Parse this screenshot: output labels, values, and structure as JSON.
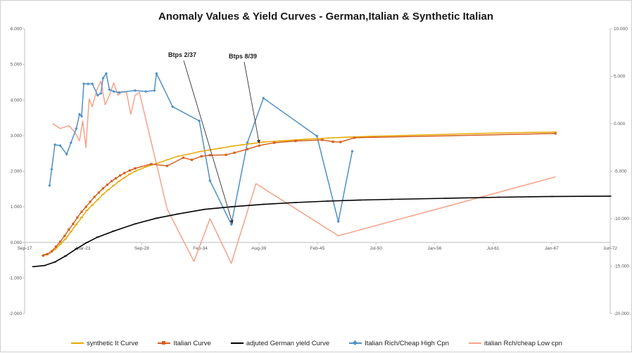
{
  "chart_data": {
    "type": "line",
    "title": "Anomaly Values & Yield Curves - German,Italian & Synthetic Italian",
    "xlabel": "",
    "ylabel": "",
    "x_ticks": [
      "Sep-17",
      "Mar-23",
      "Sep-28",
      "Feb-34",
      "Aug-39",
      "Feb-45",
      "Jul-50",
      "Jan-56",
      "Jul-61",
      "Jan-67",
      "Jun-72"
    ],
    "xlim": [
      2017.67,
      2072.42
    ],
    "y_left_ticks": [
      "-2.000",
      "-1.000",
      "0.000",
      "1.000",
      "2.000",
      "3.000",
      "4.000",
      "5.000",
      "6.000"
    ],
    "ylim_left": [
      -2,
      6
    ],
    "y_right_ticks": [
      "10.000",
      "5.000",
      "0.000",
      "-5.000",
      "-10.000",
      "-15.000",
      "-20.000"
    ],
    "ylim_right": [
      -20,
      10
    ],
    "grid": false,
    "legend_position": "bottom",
    "annotations": [
      {
        "text": "Btps 2/37",
        "points_to": [
          2037.1,
          0.5
        ]
      },
      {
        "text": "Btps 8/39",
        "points_to": [
          2039.6,
          2.75
        ]
      }
    ],
    "series": [
      {
        "name": "synthetic It Curve",
        "axis": "left",
        "color": "#e8a800",
        "marker": "dash",
        "x": [
          2019.4,
          2020.0,
          2020.5,
          2021.0,
          2021.5,
          2022.0,
          2022.5,
          2023.0,
          2023.5,
          2024.0,
          2024.5,
          2025.0,
          2025.5,
          2026.0,
          2026.5,
          2027.0,
          2027.5,
          2028.0,
          2029.0,
          2030.0,
          2031.0,
          2032.0,
          2033.0,
          2034.0,
          2035.0,
          2036.0,
          2037.0,
          2038.0,
          2039.0,
          2040.0,
          2042.0,
          2044.0,
          2046.0,
          2048.0,
          2050.0,
          2055.0,
          2060.0,
          2065.0,
          2067.3
        ],
        "y": [
          -0.35,
          -0.3,
          -0.2,
          -0.05,
          0.1,
          0.3,
          0.5,
          0.7,
          0.9,
          1.05,
          1.2,
          1.35,
          1.48,
          1.6,
          1.72,
          1.82,
          1.92,
          2.0,
          2.12,
          2.22,
          2.32,
          2.42,
          2.48,
          2.55,
          2.6,
          2.65,
          2.7,
          2.74,
          2.78,
          2.82,
          2.86,
          2.9,
          2.93,
          2.96,
          2.98,
          3.02,
          3.06,
          3.09,
          3.1
        ]
      },
      {
        "name": "Italian Curve",
        "axis": "left",
        "color": "#d4601e",
        "marker": "square",
        "x": [
          2019.4,
          2019.8,
          2020.2,
          2020.6,
          2021.0,
          2021.4,
          2021.8,
          2022.2,
          2022.6,
          2023.0,
          2023.4,
          2023.8,
          2024.2,
          2024.6,
          2025.0,
          2025.4,
          2025.8,
          2026.2,
          2026.6,
          2027.0,
          2027.5,
          2028.0,
          2029.5,
          2031.0,
          2032.5,
          2033.3,
          2034.2,
          2035.0,
          2036.5,
          2037.3,
          2038.5,
          2039.6,
          2041.0,
          2043.0,
          2045.5,
          2046.5,
          2047.2,
          2048.5,
          2067.3
        ],
        "y": [
          -0.37,
          -0.33,
          -0.25,
          -0.12,
          0.02,
          0.18,
          0.36,
          0.52,
          0.7,
          0.86,
          1.0,
          1.14,
          1.28,
          1.4,
          1.52,
          1.62,
          1.72,
          1.8,
          1.88,
          1.95,
          2.02,
          2.08,
          2.2,
          2.15,
          2.38,
          2.32,
          2.42,
          2.45,
          2.46,
          2.52,
          2.62,
          2.72,
          2.8,
          2.85,
          2.88,
          2.83,
          2.82,
          2.94,
          3.06
        ]
      },
      {
        "name": "adjuted German yield Curve",
        "axis": "left",
        "color": "#000000",
        "marker": "dash",
        "x": [
          2018.5,
          2019.5,
          2020.5,
          2021.5,
          2022.5,
          2023.5,
          2024.5,
          2026.0,
          2028.0,
          2030.0,
          2032.0,
          2034.5,
          2037.0,
          2040.0,
          2043.0,
          2046.0,
          2049.0,
          2052.0,
          2057.0,
          2062.0,
          2067.0,
          2072.4
        ],
        "y": [
          -0.68,
          -0.65,
          -0.55,
          -0.38,
          -0.18,
          0.0,
          0.15,
          0.32,
          0.52,
          0.68,
          0.8,
          0.93,
          1.0,
          1.07,
          1.12,
          1.16,
          1.19,
          1.21,
          1.24,
          1.27,
          1.29,
          1.3
        ]
      },
      {
        "name": "Italian Rich/Cheap High Cpn",
        "axis": "right",
        "color": "#4f8fc6",
        "marker": "diamond",
        "x": [
          2020.0,
          2020.2,
          2020.5,
          2021.0,
          2021.6,
          2022.0,
          2022.5,
          2022.8,
          2023.0,
          2023.2,
          2023.6,
          2024.0,
          2024.5,
          2024.8,
          2025.0,
          2025.3,
          2025.6,
          2026.0,
          2026.5,
          2028.0,
          2029.0,
          2029.8,
          2030.0,
          2031.5,
          2034.0,
          2035.0,
          2037.0,
          2038.5,
          2040.0,
          2045.0,
          2047.0,
          2048.3
        ],
        "y": [
          -6.5,
          -4.8,
          -2.2,
          -2.3,
          -3.2,
          -2.0,
          -0.5,
          1.0,
          0.8,
          4.2,
          4.2,
          4.2,
          3.0,
          3.2,
          4.8,
          5.3,
          3.6,
          3.4,
          3.3,
          3.5,
          3.4,
          3.5,
          5.3,
          1.8,
          0.3,
          -6.0,
          -10.6,
          -2.0,
          2.7,
          -1.3,
          -10.3,
          -2.9
        ]
      },
      {
        "name": "italian Rch/cheap Low cpn",
        "axis": "right",
        "color": "#f4a28a",
        "marker": "none",
        "x": [
          2020.3,
          2021.0,
          2021.8,
          2022.3,
          2022.8,
          2023.1,
          2023.4,
          2023.7,
          2024.0,
          2024.4,
          2024.8,
          2025.2,
          2025.6,
          2026.0,
          2026.4,
          2026.8,
          2027.2,
          2027.6,
          2028.0,
          2028.4,
          2031.0,
          2033.5,
          2035.0,
          2037.0,
          2039.3,
          2047.0,
          2067.3
        ],
        "y": [
          0.0,
          -0.5,
          -0.2,
          -0.8,
          -1.8,
          0.3,
          -2.5,
          2.6,
          1.8,
          3.5,
          4.5,
          2.0,
          3.0,
          4.3,
          3.0,
          3.4,
          3.3,
          1.0,
          3.0,
          3.3,
          -9.0,
          -14.5,
          -10.0,
          -14.7,
          -6.3,
          -11.8,
          -5.6
        ]
      }
    ]
  },
  "colors": {
    "synthetic": "#e8a800",
    "italian": "#d4601e",
    "german": "#000000",
    "high_cpn": "#4f8fc6",
    "low_cpn": "#f4a28a",
    "axis": "#bfbfbf"
  }
}
